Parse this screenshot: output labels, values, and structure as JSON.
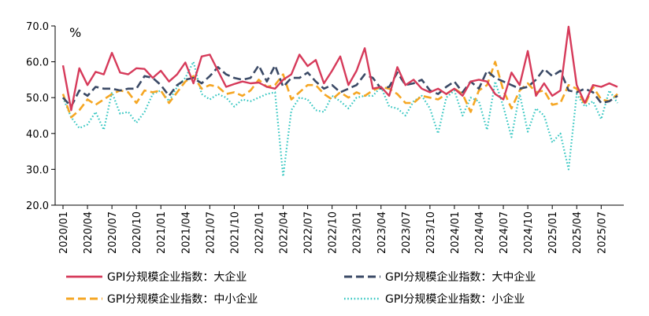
{
  "chart_data": {
    "type": "line",
    "unit_label": "%",
    "ylim": [
      20,
      70
    ],
    "yticks": [
      "20.0",
      "30.0",
      "40.0",
      "50.0",
      "60.0",
      "70.0"
    ],
    "xtick_labels": [
      "2020/01",
      "2020/04",
      "2020/07",
      "2020/10",
      "2021/01",
      "2021/04",
      "2021/07",
      "2021/10",
      "2022/01",
      "2022/04",
      "2022/07",
      "2022/10",
      "2023/01",
      "2023/04",
      "2023/07",
      "2023/10",
      "2024/01",
      "2024/04",
      "2024/07",
      "2024/10",
      "2025/01",
      "2025/04",
      "2025/07"
    ],
    "n_months": 69,
    "legend_position": "bottom",
    "colors": {
      "large": "#d63a5a",
      "large_medium": "#3b4a66",
      "small_medium": "#f5a623",
      "small": "#34c6c1"
    },
    "series": [
      {
        "key": "large",
        "name": "GPI分规模企业指数：大企业",
        "style": "solid",
        "values": [
          59,
          46.5,
          58.2,
          53.5,
          57.2,
          56.5,
          62.5,
          57,
          56.5,
          58.2,
          58,
          55.5,
          57.5,
          54.5,
          56.5,
          59.8,
          54,
          61.5,
          62,
          57.5,
          53,
          53.8,
          54.5,
          54,
          54.2,
          53,
          52.5,
          55,
          56.5,
          62,
          58.8,
          60.5,
          54,
          57.5,
          61.5,
          53.5,
          57.5,
          63.8,
          52.5,
          53,
          50.5,
          58.5,
          53.5,
          55,
          52.5,
          51.5,
          52.5,
          51,
          52.5,
          50.5,
          54.5,
          55,
          54.5,
          51,
          49.5,
          57,
          53.5,
          63,
          50.5,
          54,
          50.5,
          52,
          69.8,
          53.5,
          48.5,
          53.5,
          53,
          54,
          53
        ]
      },
      {
        "key": "large_medium",
        "name": "GPI分规模企业指数：大中企业",
        "style": "dashed",
        "values": [
          50,
          47.5,
          52,
          50.5,
          53,
          52.5,
          52.5,
          52,
          52.5,
          52.5,
          56,
          55.5,
          53.5,
          50.5,
          53.5,
          55,
          55.5,
          54,
          56,
          58.5,
          56.5,
          55.5,
          55,
          55.5,
          59,
          54.5,
          59,
          53,
          55.5,
          55.5,
          57,
          54.5,
          52.5,
          53.5,
          51.5,
          52.5,
          53.5,
          56.5,
          55.5,
          52.5,
          53,
          57,
          53.5,
          54,
          55,
          52,
          51,
          53,
          54.5,
          51.5,
          54.5,
          52.5,
          57.5,
          55.5,
          54.5,
          53.5,
          52.5,
          53,
          55,
          58,
          56,
          57.5,
          52,
          51.5,
          52.5,
          51.5,
          48.5,
          49,
          50.5
        ]
      },
      {
        "key": "small_medium",
        "name": "GPI分规模企业指数：中小企业",
        "style": "dashed",
        "values": [
          51,
          44.5,
          46.5,
          49.5,
          48,
          49.5,
          51,
          52,
          51.5,
          48.5,
          52,
          51.5,
          52,
          48.5,
          51.5,
          54.5,
          56,
          52.5,
          53.5,
          53,
          51,
          51.5,
          50.5,
          52,
          55,
          53,
          53.5,
          56.5,
          49.5,
          51.5,
          53.5,
          53.5,
          51,
          49.5,
          51.5,
          50,
          51.5,
          50.5,
          52,
          53,
          52.5,
          51,
          48.5,
          48.5,
          50.5,
          50,
          49.5,
          51,
          52.5,
          51,
          46,
          52,
          53.5,
          60,
          52,
          47,
          52,
          54,
          51.5,
          52,
          48,
          48.5,
          53.5,
          52.5,
          48,
          53,
          49.5,
          49,
          51
        ]
      },
      {
        "key": "small",
        "name": "GPI分规模企业指数：小企业",
        "style": "dotted",
        "values": [
          50,
          44.5,
          41.5,
          42.5,
          46,
          41,
          51.5,
          45.5,
          46,
          43,
          46,
          51,
          52,
          49,
          53,
          55.5,
          60,
          51,
          49.5,
          51,
          50,
          47.5,
          49.5,
          49,
          50,
          51,
          51.5,
          28,
          46.5,
          50,
          49.5,
          46.5,
          46,
          50.5,
          49,
          47,
          50,
          50.5,
          50.5,
          53,
          47.5,
          47,
          45,
          49,
          50.5,
          47,
          40,
          50,
          52,
          45,
          50,
          49,
          41,
          54.5,
          47.5,
          39,
          51,
          40.5,
          47,
          45,
          37.5,
          40,
          30,
          51,
          47.5,
          49,
          44,
          52,
          48.5
        ]
      }
    ]
  }
}
